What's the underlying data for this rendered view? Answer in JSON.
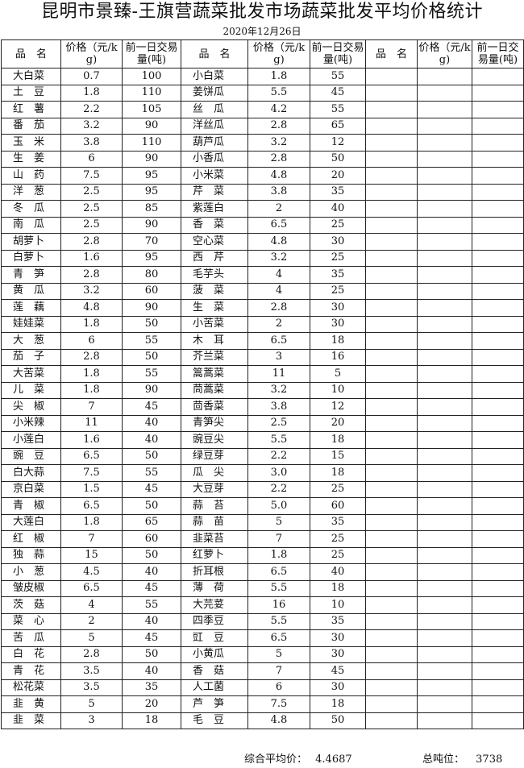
{
  "title": "昆明市景臻-王旗营蔬菜批发市场蔬菜批发平均价格统计",
  "date": "2020年12月26日",
  "headers": {
    "name": "品　名",
    "price": "价格（元/kg)",
    "volume": "前一日交易量(吨)"
  },
  "rows": [
    [
      "大白菜",
      "0.7",
      "100",
      "小白菜",
      "1.8",
      "55"
    ],
    [
      "土　豆",
      "1.8",
      "110",
      "姜饼瓜",
      "5.5",
      "45"
    ],
    [
      "红　薯",
      "2.2",
      "105",
      "丝　瓜",
      "4.2",
      "55"
    ],
    [
      "番　茄",
      "3.2",
      "90",
      "洋丝瓜",
      "2.8",
      "65"
    ],
    [
      "玉　米",
      "3.8",
      "110",
      "葫芦瓜",
      "3.2",
      "12"
    ],
    [
      "生　姜",
      "6",
      "90",
      "小香瓜",
      "2.8",
      "50"
    ],
    [
      "山　药",
      "7.5",
      "95",
      "小米菜",
      "4.8",
      "20"
    ],
    [
      "洋　葱",
      "2.5",
      "95",
      "芹　菜",
      "3.8",
      "35"
    ],
    [
      "冬　瓜",
      "2.5",
      "85",
      "紫莲白",
      "2",
      "40"
    ],
    [
      "南　瓜",
      "2.5",
      "90",
      "香　菜",
      "6.5",
      "25"
    ],
    [
      "胡萝卜",
      "2.8",
      "70",
      "空心菜",
      "4.8",
      "30"
    ],
    [
      "白萝卜",
      "1.6",
      "95",
      "西　芹",
      "3.2",
      "25"
    ],
    [
      "青　笋",
      "2.8",
      "80",
      "毛芋头",
      "4",
      "35"
    ],
    [
      "黄　瓜",
      "3.2",
      "60",
      "菠　菜",
      "4",
      "25"
    ],
    [
      "莲　藕",
      "4.8",
      "90",
      "生　菜",
      "2.8",
      "30"
    ],
    [
      "娃娃菜",
      "1.8",
      "50",
      "小苦菜",
      "2",
      "30"
    ],
    [
      "大　葱",
      "6",
      "55",
      "木　耳",
      "6.5",
      "18"
    ],
    [
      "茄　子",
      "2.8",
      "50",
      "芥兰菜",
      "3",
      "16"
    ],
    [
      "大苦菜",
      "1.8",
      "55",
      "篙蒿菜",
      "11",
      "5"
    ],
    [
      "儿　菜",
      "1.8",
      "90",
      "茼蒿菜",
      "3.2",
      "10"
    ],
    [
      "尖　椒",
      "7",
      "45",
      "茴香菜",
      "3.8",
      "12"
    ],
    [
      "小米辣",
      "11",
      "40",
      "青笋尖",
      "2.5",
      "20"
    ],
    [
      "小莲白",
      "1.6",
      "40",
      "豌豆尖",
      "5.5",
      "18"
    ],
    [
      "豌　豆",
      "6.5",
      "50",
      "绿豆芽",
      "2.2",
      "15"
    ],
    [
      "白大蒜",
      "7.5",
      "55",
      "瓜　尖",
      "3.0",
      "18"
    ],
    [
      "京白菜",
      "1.5",
      "45",
      "大豆芽",
      "2.2",
      "25"
    ],
    [
      "青　椒",
      "6.5",
      "50",
      "蒜　苔",
      "5.0",
      "60"
    ],
    [
      "大莲白",
      "1.8",
      "65",
      "蒜　苗",
      "5",
      "35"
    ],
    [
      "红　椒",
      "7",
      "60",
      "韭菜苔",
      "7",
      "25"
    ],
    [
      "独　蒜",
      "15",
      "50",
      "红萝卜",
      "1.8",
      "25"
    ],
    [
      "小　葱",
      "4.5",
      "40",
      "折耳根",
      "6.5",
      "40"
    ],
    [
      "皱皮椒",
      "6.5",
      "45",
      "薄　荷",
      "5.5",
      "18"
    ],
    [
      "茨　菇",
      "4",
      "55",
      "大芫荽",
      "16",
      "10"
    ],
    [
      "菜　心",
      "2",
      "40",
      "四季豆",
      "5.5",
      "35"
    ],
    [
      "苦　瓜",
      "5",
      "45",
      "豇　豆",
      "6.5",
      "30"
    ],
    [
      "白　花",
      "2.8",
      "50",
      "小黄瓜",
      "5",
      "30"
    ],
    [
      "青　花",
      "3.5",
      "40",
      "香　菇",
      "7",
      "45"
    ],
    [
      "松花菜",
      "3.5",
      "35",
      "人工菌",
      "6",
      "30"
    ],
    [
      "韭　黄",
      "5",
      "20",
      "芦　笋",
      "7.5",
      "18"
    ],
    [
      "韭　菜",
      "3",
      "18",
      "毛　豆",
      "4.8",
      "50"
    ]
  ],
  "footer": {
    "avg_label": "综合平均价：",
    "avg_value": "4.4687",
    "total_label": "总吨位：",
    "total_value": "3738"
  }
}
